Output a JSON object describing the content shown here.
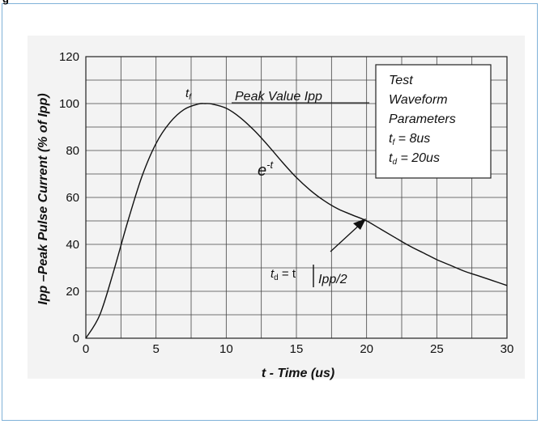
{
  "figure": {
    "tag": "g"
  },
  "chart_data": {
    "type": "line",
    "title": "",
    "xlabel": "t - Time (us)",
    "ylabel": "Ipp –Peak Pulse Current (% of Ipp)",
    "xlim": [
      0,
      30
    ],
    "ylim": [
      0,
      120
    ],
    "x_ticks": [
      0,
      5,
      10,
      15,
      20,
      25,
      30
    ],
    "y_ticks": [
      0,
      20,
      40,
      60,
      80,
      100,
      120
    ],
    "grid": true,
    "series": [
      {
        "x": [
          0,
          1,
          2,
          3,
          4,
          5,
          6,
          7,
          8,
          8.5,
          9,
          10,
          11,
          12,
          13,
          14,
          15,
          16,
          17,
          18,
          19,
          20,
          21,
          22,
          23,
          24,
          25,
          26,
          27,
          28,
          29,
          30
        ],
        "values": [
          0,
          10,
          29,
          50,
          69,
          83,
          92,
          97.5,
          99.8,
          100,
          99.8,
          98,
          94,
          88.5,
          82,
          75,
          68.5,
          63,
          58.5,
          55,
          52.5,
          50,
          46.5,
          43,
          39.5,
          36.5,
          33.5,
          31,
          28.5,
          26.5,
          24.5,
          22.5
        ]
      }
    ],
    "annotations": {
      "tf_label": "t",
      "tf_sub": "f",
      "peak_label": "Peak Value Ipp",
      "decay_base": "e",
      "decay_exp": "-t",
      "td_prefix": "t",
      "td_sub": "d",
      "td_mid": " = t",
      "td_suffix": "Ipp/2"
    },
    "legend_box": {
      "line1": "Test",
      "line2": "Waveform",
      "line3": "Parameters",
      "line4_var": "t",
      "line4_sub": "f",
      "line4_val": " = 8us",
      "line5_var": "t",
      "line5_sub": "d",
      "line5_val": " = 20us"
    }
  }
}
